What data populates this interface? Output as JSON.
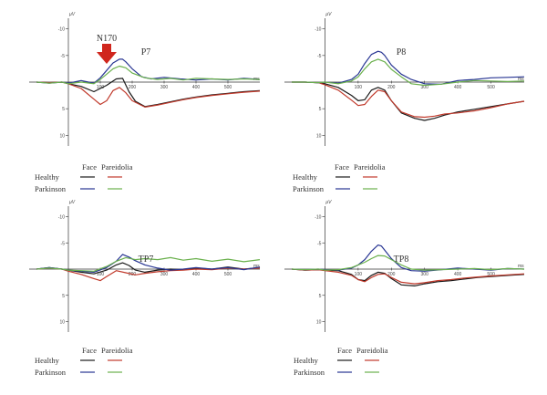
{
  "chart_data": [
    {
      "type": "line",
      "title": "P7",
      "annotation": "N170",
      "xunit": "ms",
      "yunit": "μV",
      "y_inverted": true,
      "xlim": [
        -100,
        600
      ],
      "ylim": [
        -12,
        12
      ],
      "xticks": [
        100,
        200,
        300,
        400,
        500
      ],
      "yticks": [
        -10,
        -5,
        5,
        10
      ],
      "series": [
        {
          "name": "Healthy Face",
          "color": "#1a1a1a",
          "x": [
            -100,
            -60,
            -20,
            0,
            40,
            80,
            120,
            150,
            170,
            190,
            210,
            240,
            280,
            320,
            360,
            400,
            450,
            500,
            550,
            600
          ],
          "y": [
            0,
            0.1,
            0,
            0.3,
            0.8,
            1.8,
            0.6,
            -0.6,
            -0.7,
            1.8,
            3.6,
            4.6,
            4.2,
            3.7,
            3.2,
            2.8,
            2.4,
            2.1,
            1.8,
            1.6
          ]
        },
        {
          "name": "Healthy Pareidolia",
          "color": "#c0392b",
          "x": [
            -100,
            -60,
            -20,
            0,
            40,
            80,
            100,
            120,
            140,
            160,
            180,
            200,
            240,
            280,
            320,
            360,
            400,
            450,
            500,
            550,
            600
          ],
          "y": [
            0,
            0.1,
            0,
            0.3,
            1.2,
            3.2,
            4.2,
            3.5,
            1.6,
            1.0,
            2.0,
            3.5,
            4.7,
            4.3,
            3.8,
            3.3,
            2.9,
            2.5,
            2.2,
            1.9,
            1.7
          ]
        },
        {
          "name": "Parkinson Face",
          "color": "#283593",
          "x": [
            -100,
            -60,
            -20,
            0,
            40,
            80,
            100,
            120,
            140,
            160,
            170,
            180,
            200,
            230,
            260,
            300,
            350,
            400,
            450,
            500,
            550,
            600
          ],
          "y": [
            0,
            0.2,
            0,
            0.2,
            -0.3,
            0.2,
            -0.8,
            -2.2,
            -3.6,
            -4.3,
            -4.3,
            -3.8,
            -2.5,
            -1.0,
            -0.6,
            -0.9,
            -0.6,
            -0.4,
            -0.6,
            -0.4,
            -0.7,
            -0.5
          ]
        },
        {
          "name": "Parkinson Pareidolia",
          "color": "#6ab04c",
          "x": [
            -100,
            -60,
            -20,
            0,
            40,
            80,
            100,
            120,
            140,
            160,
            180,
            200,
            240,
            280,
            320,
            360,
            400,
            450,
            500,
            550,
            600
          ],
          "y": [
            0,
            0.2,
            0,
            0.3,
            0,
            0.3,
            -0.5,
            -1.5,
            -2.5,
            -3.0,
            -2.7,
            -1.7,
            -0.8,
            -0.5,
            -0.7,
            -0.4,
            -0.7,
            -0.6,
            -0.5,
            -0.6,
            -0.5
          ]
        }
      ]
    },
    {
      "type": "line",
      "title": "P8",
      "xunit": "ms",
      "yunit": "μV",
      "y_inverted": true,
      "xlim": [
        -100,
        600
      ],
      "ylim": [
        -12,
        12
      ],
      "xticks": [
        100,
        200,
        300,
        400,
        500
      ],
      "yticks": [
        -10,
        -5,
        5,
        10
      ],
      "series": [
        {
          "name": "Healthy Face",
          "color": "#1a1a1a",
          "x": [
            -100,
            -60,
            -20,
            0,
            40,
            80,
            100,
            120,
            140,
            160,
            180,
            200,
            230,
            270,
            300,
            330,
            360,
            400,
            450,
            500,
            550,
            600
          ],
          "y": [
            0,
            0,
            0.1,
            0.3,
            1.0,
            2.5,
            3.5,
            3.3,
            1.5,
            1.0,
            1.5,
            3.5,
            5.8,
            6.8,
            7.2,
            6.8,
            6.2,
            5.6,
            5.1,
            4.6,
            4.1,
            3.6
          ]
        },
        {
          "name": "Healthy Pareidolia",
          "color": "#c0392b",
          "x": [
            -100,
            -60,
            -20,
            0,
            40,
            80,
            100,
            120,
            140,
            160,
            180,
            200,
            230,
            270,
            300,
            330,
            360,
            400,
            450,
            500,
            550,
            600
          ],
          "y": [
            0,
            0,
            0.1,
            0.5,
            1.5,
            3.4,
            4.4,
            4.2,
            2.7,
            1.5,
            1.8,
            3.5,
            5.6,
            6.5,
            6.6,
            6.4,
            6.0,
            5.8,
            5.4,
            4.8,
            4.1,
            3.6
          ]
        },
        {
          "name": "Parkinson Face",
          "color": "#283593",
          "x": [
            -100,
            -60,
            -20,
            0,
            40,
            80,
            100,
            120,
            140,
            160,
            170,
            180,
            200,
            230,
            260,
            300,
            350,
            400,
            450,
            500,
            550,
            600
          ],
          "y": [
            0,
            0,
            0.1,
            0,
            0.2,
            -0.5,
            -1.5,
            -3.5,
            -5.2,
            -5.8,
            -5.6,
            -5.0,
            -3.2,
            -1.5,
            -0.5,
            0.3,
            0.4,
            -0.3,
            -0.5,
            -0.8,
            -0.9,
            -1.0
          ]
        },
        {
          "name": "Parkinson Pareidolia",
          "color": "#6ab04c",
          "x": [
            -100,
            -60,
            -20,
            0,
            40,
            80,
            100,
            120,
            140,
            160,
            180,
            200,
            230,
            260,
            300,
            350,
            400,
            450,
            500,
            550,
            600
          ],
          "y": [
            0,
            0,
            0.1,
            0,
            0.3,
            -0.2,
            -1.0,
            -2.5,
            -3.8,
            -4.3,
            -3.8,
            -2.4,
            -1.0,
            0.3,
            0.6,
            0.4,
            0,
            -0.3,
            -0.2,
            -0.1,
            -0.2
          ]
        }
      ]
    },
    {
      "type": "line",
      "title": "TP7",
      "xunit": "ms",
      "yunit": "μV",
      "y_inverted": true,
      "xlim": [
        -100,
        600
      ],
      "ylim": [
        -12,
        12
      ],
      "xticks": [
        100,
        200,
        300,
        400,
        500
      ],
      "yticks": [
        -10,
        -5,
        5,
        10
      ],
      "series": [
        {
          "name": "Healthy Face",
          "color": "#1a1a1a",
          "x": [
            -100,
            -60,
            -20,
            0,
            40,
            80,
            120,
            150,
            170,
            190,
            210,
            240,
            280,
            320,
            360,
            400,
            450,
            500,
            550,
            600
          ],
          "y": [
            0,
            -0.3,
            0,
            0.2,
            0.6,
            0.9,
            0.2,
            -0.8,
            -1.2,
            -0.7,
            0.2,
            0.6,
            0.2,
            0,
            0.1,
            -0.2,
            0,
            -0.4,
            0,
            -0.3
          ]
        },
        {
          "name": "Healthy Pareidolia",
          "color": "#c0392b",
          "x": [
            -100,
            -60,
            -20,
            0,
            40,
            80,
            100,
            120,
            150,
            180,
            210,
            240,
            280,
            320,
            360,
            400,
            450,
            500,
            550,
            600
          ],
          "y": [
            0,
            -0.2,
            0,
            0.4,
            1.0,
            1.8,
            2.2,
            1.4,
            0.3,
            0.7,
            1.1,
            0.8,
            0.5,
            0.3,
            0.2,
            0,
            0.1,
            -0.2,
            0,
            -0.2
          ]
        },
        {
          "name": "Parkinson Face",
          "color": "#283593",
          "x": [
            -100,
            -60,
            -20,
            0,
            40,
            80,
            120,
            150,
            170,
            190,
            210,
            240,
            280,
            320,
            360,
            400,
            450,
            500,
            550,
            600
          ],
          "y": [
            0,
            -0.3,
            0,
            0.2,
            0.4,
            0.6,
            -0.3,
            -1.5,
            -2.8,
            -2.3,
            -1.6,
            -0.8,
            -0.2,
            0.2,
            0,
            -0.3,
            0,
            -0.3,
            0.1,
            -0.4
          ]
        },
        {
          "name": "Parkinson Pareidolia",
          "color": "#6ab04c",
          "x": [
            -100,
            -60,
            -20,
            0,
            40,
            80,
            120,
            150,
            180,
            210,
            240,
            280,
            320,
            360,
            400,
            450,
            500,
            550,
            600
          ],
          "y": [
            0,
            -0.2,
            0,
            0.2,
            0.3,
            0.4,
            -0.5,
            -1.5,
            -2.2,
            -1.8,
            -2.0,
            -1.8,
            -2.2,
            -1.7,
            -2.0,
            -1.5,
            -1.9,
            -1.4,
            -1.8
          ]
        }
      ]
    },
    {
      "type": "line",
      "title": "TP8",
      "xunit": "ms",
      "yunit": "μV",
      "y_inverted": true,
      "xlim": [
        -100,
        600
      ],
      "ylim": [
        -12,
        12
      ],
      "xticks": [
        100,
        200,
        300,
        400,
        500
      ],
      "yticks": [
        -10,
        -5,
        5,
        10
      ],
      "series": [
        {
          "name": "Healthy Face",
          "color": "#1a1a1a",
          "x": [
            -100,
            -60,
            -20,
            0,
            40,
            80,
            100,
            120,
            140,
            160,
            180,
            200,
            230,
            270,
            300,
            340,
            380,
            420,
            460,
            500,
            550,
            600
          ],
          "y": [
            0,
            0.2,
            0.1,
            0.2,
            0.3,
            1.0,
            2.0,
            2.2,
            1.2,
            0.6,
            0.8,
            1.8,
            3.0,
            3.2,
            2.8,
            2.4,
            2.2,
            1.9,
            1.6,
            1.4,
            1.2,
            1.0
          ]
        },
        {
          "name": "Healthy Pareidolia",
          "color": "#c0392b",
          "x": [
            -100,
            -60,
            -20,
            0,
            40,
            80,
            100,
            120,
            140,
            160,
            180,
            200,
            230,
            270,
            300,
            340,
            380,
            420,
            460,
            500,
            550,
            600
          ],
          "y": [
            0,
            0.2,
            0.1,
            0.3,
            0.6,
            1.2,
            2.0,
            2.4,
            1.6,
            1.0,
            0.9,
            1.6,
            2.5,
            2.8,
            2.6,
            2.2,
            2.0,
            1.7,
            1.5,
            1.3,
            1.1,
            0.9
          ]
        },
        {
          "name": "Parkinson Face",
          "color": "#283593",
          "x": [
            -100,
            -60,
            -20,
            0,
            40,
            80,
            100,
            120,
            140,
            160,
            170,
            180,
            200,
            230,
            260,
            300,
            350,
            400,
            450,
            500,
            550,
            600
          ],
          "y": [
            0,
            0.1,
            0,
            0.1,
            0.2,
            -0.2,
            -0.8,
            -1.8,
            -3.4,
            -4.6,
            -4.4,
            -3.6,
            -2.0,
            -0.3,
            0.3,
            0.4,
            0.1,
            -0.2,
            0,
            0.2,
            -0.1,
            0
          ]
        },
        {
          "name": "Parkinson Pareidolia",
          "color": "#6ab04c",
          "x": [
            -100,
            -60,
            -20,
            0,
            40,
            80,
            100,
            120,
            140,
            160,
            180,
            200,
            230,
            260,
            300,
            350,
            400,
            450,
            500,
            550,
            600
          ],
          "y": [
            0,
            0.1,
            0,
            0.2,
            0.1,
            -0.3,
            -0.8,
            -1.3,
            -2.0,
            -2.6,
            -2.5,
            -1.8,
            -0.8,
            0,
            0.2,
            0.1,
            0,
            -0.1,
            0.1,
            -0.1,
            0
          ]
        }
      ]
    }
  ],
  "legend": {
    "col_face": "Face",
    "col_pareidolia": "Pareidolia",
    "row_healthy": "Healthy",
    "row_parkinson": "Parkinson",
    "colors": {
      "healthy_face": "#1a1a1a",
      "healthy_pareidolia": "#c0392b",
      "parkinson_face": "#283593",
      "parkinson_pareidolia": "#6ab04c"
    }
  },
  "arrow_color": "#d0261d"
}
